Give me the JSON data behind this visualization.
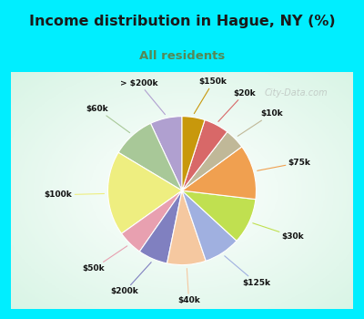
{
  "title": "Income distribution in Hague, NY (%)",
  "subtitle": "All residents",
  "title_color": "#1a1a1a",
  "subtitle_color": "#558855",
  "bg_cyan": "#00eeff",
  "bg_chart_color": "#d8efe6",
  "labels": [
    "> $200k",
    "$60k",
    "$100k",
    "$50k",
    "$200k",
    "$40k",
    "$125k",
    "$30k",
    "$75k",
    "$10k",
    "$20k",
    "$150k"
  ],
  "values": [
    7.0,
    9.5,
    18.5,
    5.5,
    6.5,
    8.5,
    8.0,
    10.0,
    12.0,
    4.5,
    5.5,
    5.0
  ],
  "colors": [
    "#b0a0d0",
    "#a8c898",
    "#eeee80",
    "#e8a0b0",
    "#8080c0",
    "#f5c8a0",
    "#a0b0e0",
    "#c0e050",
    "#f0a050",
    "#c0b898",
    "#d86868",
    "#c8980c"
  ],
  "line_colors": [
    "#b0a0d0",
    "#a8c898",
    "#eeee80",
    "#e8a0b0",
    "#8080c0",
    "#f5c8a0",
    "#a0b0e0",
    "#c0e050",
    "#f0a050",
    "#c0b898",
    "#d86868",
    "#c8980c"
  ],
  "startangle": 90,
  "figsize": [
    4.0,
    3.5
  ],
  "dpi": 100
}
